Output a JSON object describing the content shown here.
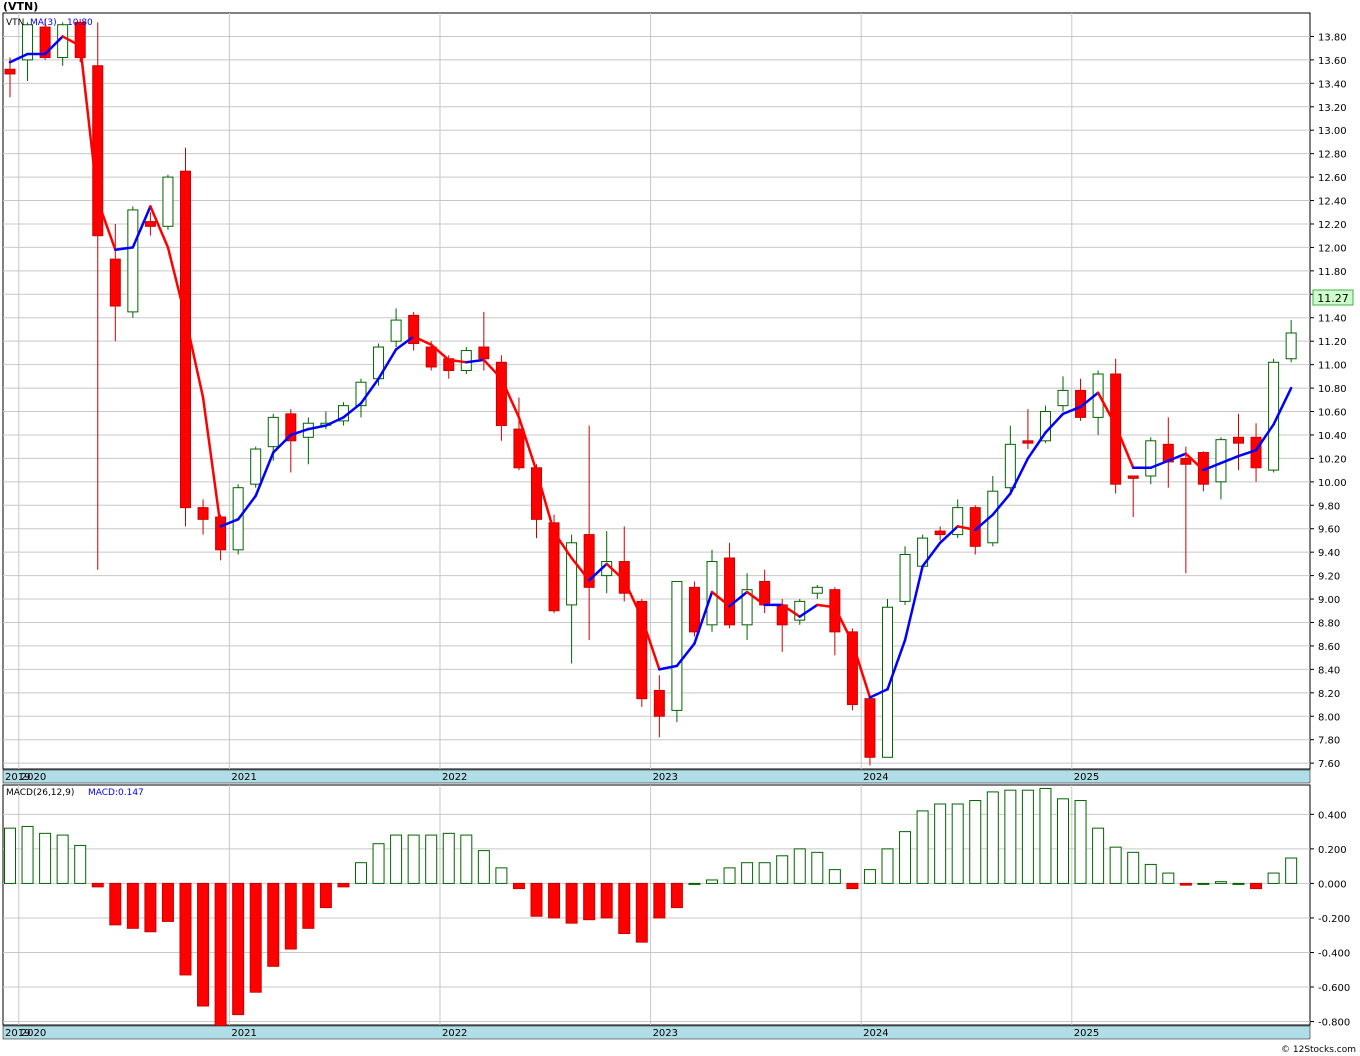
{
  "ticker": "(VTN)",
  "watermark": "© 12Stocks.com",
  "colors": {
    "up": "#006400",
    "down": "#ff0000",
    "ma": "#0000ff",
    "band": "#b0dde6",
    "grid": "#c8c8c8",
    "last_price_box": "#ccffcc"
  },
  "chart_data": [
    {
      "type": "candlestick",
      "period": "monthly",
      "legend": [
        "VTN",
        "MA(3)",
        "10.80"
      ],
      "last_price": "11.27",
      "ylim": [
        7.55,
        14.0
      ],
      "y_ticks": [
        "7.60",
        "7.80",
        "8.00",
        "8.20",
        "8.40",
        "8.60",
        "8.80",
        "9.00",
        "9.20",
        "9.40",
        "9.60",
        "9.80",
        "10.00",
        "10.20",
        "10.40",
        "10.60",
        "10.80",
        "11.00",
        "11.20",
        "11.40",
        "11.60",
        "11.80",
        "12.00",
        "12.20",
        "12.40",
        "12.60",
        "12.80",
        "13.00",
        "13.20",
        "13.40",
        "13.60",
        "13.80"
      ],
      "x_labels": [
        {
          "label": "2019",
          "month": "2019-12"
        },
        {
          "label": "2020",
          "month": "2020-01"
        },
        {
          "label": "2021",
          "month": "2021-01"
        },
        {
          "label": "2022",
          "month": "2022-01"
        },
        {
          "label": "2023",
          "month": "2023-01"
        },
        {
          "label": "2024",
          "month": "2024-01"
        },
        {
          "label": "2025",
          "month": "2025-01"
        }
      ],
      "candles": [
        {
          "d": "2019-12",
          "o": 13.52,
          "h": 13.62,
          "l": 13.28,
          "c": 13.48
        },
        {
          "d": "2020-01",
          "o": 13.6,
          "h": 13.92,
          "l": 13.42,
          "c": 13.9
        },
        {
          "d": "2020-02",
          "o": 13.88,
          "h": 13.95,
          "l": 13.6,
          "c": 13.62
        },
        {
          "d": "2020-03",
          "o": 13.62,
          "h": 13.92,
          "l": 13.55,
          "c": 13.9
        },
        {
          "d": "2020-04",
          "o": 13.92,
          "h": 13.95,
          "l": 13.58,
          "c": 13.62
        },
        {
          "d": "2020-05",
          "o": 13.55,
          "h": 13.92,
          "l": 9.25,
          "c": 12.1
        },
        {
          "d": "2020-06",
          "o": 11.9,
          "h": 12.2,
          "l": 11.2,
          "c": 11.5
        },
        {
          "d": "2020-07",
          "o": 11.45,
          "h": 12.35,
          "l": 11.4,
          "c": 12.32
        },
        {
          "d": "2020-08",
          "o": 12.22,
          "h": 12.3,
          "l": 12.1,
          "c": 12.18
        },
        {
          "d": "2020-09",
          "o": 12.18,
          "h": 12.62,
          "l": 12.15,
          "c": 12.6
        },
        {
          "d": "2020-10",
          "o": 12.65,
          "h": 12.85,
          "l": 9.62,
          "c": 9.78
        },
        {
          "d": "2020-11",
          "o": 9.78,
          "h": 9.85,
          "l": 9.55,
          "c": 9.68
        },
        {
          "d": "2020-12",
          "o": 9.7,
          "h": 9.72,
          "l": 9.33,
          "c": 9.42
        },
        {
          "d": "2021-01",
          "o": 9.42,
          "h": 9.98,
          "l": 9.38,
          "c": 9.95
        },
        {
          "d": "2021-02",
          "o": 9.98,
          "h": 10.3,
          "l": 9.95,
          "c": 10.28
        },
        {
          "d": "2021-03",
          "o": 10.3,
          "h": 10.58,
          "l": 10.18,
          "c": 10.55
        },
        {
          "d": "2021-04",
          "o": 10.58,
          "h": 10.62,
          "l": 10.08,
          "c": 10.35
        },
        {
          "d": "2021-05",
          "o": 10.38,
          "h": 10.55,
          "l": 10.15,
          "c": 10.5
        },
        {
          "d": "2021-06",
          "o": 10.5,
          "h": 10.6,
          "l": 10.45,
          "c": 10.5
        },
        {
          "d": "2021-07",
          "o": 10.52,
          "h": 10.68,
          "l": 10.48,
          "c": 10.65
        },
        {
          "d": "2021-08",
          "o": 10.65,
          "h": 10.88,
          "l": 10.55,
          "c": 10.85
        },
        {
          "d": "2021-09",
          "o": 10.88,
          "h": 11.18,
          "l": 10.82,
          "c": 11.15
        },
        {
          "d": "2021-10",
          "o": 11.2,
          "h": 11.48,
          "l": 11.15,
          "c": 11.38
        },
        {
          "d": "2021-11",
          "o": 11.42,
          "h": 11.45,
          "l": 11.12,
          "c": 11.18
        },
        {
          "d": "2021-12",
          "o": 11.15,
          "h": 11.2,
          "l": 10.95,
          "c": 10.98
        },
        {
          "d": "2022-01",
          "o": 11.05,
          "h": 11.08,
          "l": 10.88,
          "c": 10.95
        },
        {
          "d": "2022-02",
          "o": 10.95,
          "h": 11.15,
          "l": 10.92,
          "c": 11.12
        },
        {
          "d": "2022-03",
          "o": 11.15,
          "h": 11.45,
          "l": 10.95,
          "c": 11.05
        },
        {
          "d": "2022-04",
          "o": 11.02,
          "h": 11.08,
          "l": 10.35,
          "c": 10.48
        },
        {
          "d": "2022-05",
          "o": 10.45,
          "h": 10.72,
          "l": 10.1,
          "c": 10.12
        },
        {
          "d": "2022-06",
          "o": 10.12,
          "h": 10.15,
          "l": 9.52,
          "c": 9.68
        },
        {
          "d": "2022-07",
          "o": 9.65,
          "h": 9.72,
          "l": 8.88,
          "c": 8.9
        },
        {
          "d": "2022-08",
          "o": 8.95,
          "h": 9.55,
          "l": 8.45,
          "c": 9.48
        },
        {
          "d": "2022-09",
          "o": 9.55,
          "h": 10.48,
          "l": 8.65,
          "c": 9.1
        },
        {
          "d": "2022-10",
          "o": 9.2,
          "h": 9.58,
          "l": 9.05,
          "c": 9.32
        },
        {
          "d": "2022-11",
          "o": 9.32,
          "h": 9.62,
          "l": 8.98,
          "c": 9.05
        },
        {
          "d": "2022-12",
          "o": 8.98,
          "h": 9.0,
          "l": 8.08,
          "c": 8.15
        },
        {
          "d": "2023-01",
          "o": 8.22,
          "h": 8.35,
          "l": 7.82,
          "c": 8.0
        },
        {
          "d": "2023-02",
          "o": 8.05,
          "h": 9.15,
          "l": 7.95,
          "c": 9.15
        },
        {
          "d": "2023-03",
          "o": 9.1,
          "h": 9.15,
          "l": 8.68,
          "c": 8.72
        },
        {
          "d": "2023-04",
          "o": 8.78,
          "h": 9.42,
          "l": 8.72,
          "c": 9.32
        },
        {
          "d": "2023-05",
          "o": 9.35,
          "h": 9.48,
          "l": 8.75,
          "c": 8.78
        },
        {
          "d": "2023-06",
          "o": 8.78,
          "h": 9.22,
          "l": 8.65,
          "c": 9.08
        },
        {
          "d": "2023-07",
          "o": 9.15,
          "h": 9.25,
          "l": 8.88,
          "c": 8.95
        },
        {
          "d": "2023-08",
          "o": 8.95,
          "h": 9.0,
          "l": 8.55,
          "c": 8.78
        },
        {
          "d": "2023-09",
          "o": 8.82,
          "h": 9.0,
          "l": 8.78,
          "c": 8.98
        },
        {
          "d": "2023-10",
          "o": 9.05,
          "h": 9.12,
          "l": 9.0,
          "c": 9.1
        },
        {
          "d": "2023-11",
          "o": 9.08,
          "h": 9.1,
          "l": 8.52,
          "c": 8.72
        },
        {
          "d": "2023-12",
          "o": 8.72,
          "h": 8.75,
          "l": 8.05,
          "c": 8.1
        },
        {
          "d": "2024-01",
          "o": 8.15,
          "h": 8.18,
          "l": 7.58,
          "c": 7.65
        },
        {
          "d": "2024-02",
          "o": 7.65,
          "h": 9.0,
          "l": 7.65,
          "c": 8.93
        },
        {
          "d": "2024-03",
          "o": 8.98,
          "h": 9.45,
          "l": 8.95,
          "c": 9.38
        },
        {
          "d": "2024-04",
          "o": 9.28,
          "h": 9.55,
          "l": 9.25,
          "c": 9.52
        },
        {
          "d": "2024-05",
          "o": 9.58,
          "h": 9.62,
          "l": 9.5,
          "c": 9.55
        },
        {
          "d": "2024-06",
          "o": 9.55,
          "h": 9.85,
          "l": 9.52,
          "c": 9.78
        },
        {
          "d": "2024-07",
          "o": 9.78,
          "h": 9.8,
          "l": 9.38,
          "c": 9.45
        },
        {
          "d": "2024-08",
          "o": 9.48,
          "h": 10.05,
          "l": 9.45,
          "c": 9.92
        },
        {
          "d": "2024-09",
          "o": 9.95,
          "h": 10.48,
          "l": 9.9,
          "c": 10.32
        },
        {
          "d": "2024-10",
          "o": 10.35,
          "h": 10.62,
          "l": 10.28,
          "c": 10.33
        },
        {
          "d": "2024-11",
          "o": 10.35,
          "h": 10.65,
          "l": 10.33,
          "c": 10.6
        },
        {
          "d": "2024-12",
          "o": 10.65,
          "h": 10.9,
          "l": 10.6,
          "c": 10.78
        },
        {
          "d": "2025-01",
          "o": 10.78,
          "h": 10.88,
          "l": 10.52,
          "c": 10.55
        },
        {
          "d": "2025-02",
          "o": 10.55,
          "h": 10.95,
          "l": 10.4,
          "c": 10.92
        },
        {
          "d": "2025-03",
          "o": 10.92,
          "h": 11.05,
          "l": 9.9,
          "c": 9.98
        },
        {
          "d": "2025-04",
          "o": 10.05,
          "h": 10.05,
          "l": 9.7,
          "c": 10.03
        },
        {
          "d": "2025-05",
          "o": 10.05,
          "h": 10.38,
          "l": 9.98,
          "c": 10.35
        },
        {
          "d": "2025-06",
          "o": 10.32,
          "h": 10.55,
          "l": 9.95,
          "c": 10.17
        },
        {
          "d": "2025-07",
          "o": 10.2,
          "h": 10.3,
          "l": 9.22,
          "c": 10.15
        },
        {
          "d": "2025-08",
          "o": 10.25,
          "h": 10.26,
          "l": 9.92,
          "c": 9.98
        },
        {
          "d": "2025-09",
          "o": 10.0,
          "h": 10.38,
          "l": 9.85,
          "c": 10.36
        },
        {
          "d": "2025-10",
          "o": 10.38,
          "h": 10.58,
          "l": 10.1,
          "c": 10.33
        },
        {
          "d": "2025-11",
          "o": 10.38,
          "h": 10.5,
          "l": 10.0,
          "c": 10.12
        },
        {
          "d": "2025-12",
          "o": 10.1,
          "h": 11.05,
          "l": 10.08,
          "c": 11.02
        },
        {
          "d": "2026-01",
          "o": 11.05,
          "h": 11.38,
          "l": 11.02,
          "c": 11.27
        }
      ],
      "ma3": [
        13.58,
        13.65,
        13.65,
        13.8,
        13.72,
        12.4,
        11.98,
        12.0,
        12.35,
        12.0,
        11.4,
        10.72,
        9.62,
        9.68,
        9.88,
        10.25,
        10.4,
        10.45,
        10.48,
        10.55,
        10.67,
        10.88,
        11.13,
        11.24,
        11.17,
        11.04,
        11.02,
        11.04,
        10.88,
        10.55,
        10.09,
        9.57,
        9.35,
        9.16,
        9.3,
        9.16,
        8.84,
        8.4,
        8.43,
        8.62,
        9.06,
        8.94,
        9.06,
        8.95,
        8.95,
        8.85,
        8.95,
        8.93,
        8.63,
        8.16,
        8.23,
        8.65,
        9.28,
        9.48,
        9.62,
        9.59,
        9.72,
        9.9,
        10.2,
        10.42,
        10.58,
        10.64,
        10.76,
        10.48,
        10.12,
        10.12,
        10.18,
        10.24,
        10.1,
        10.16,
        10.22,
        10.27,
        10.49,
        10.8
      ],
      "macd_panel": {
        "legend": [
          "MACD(26,12,9)",
          "MACD:0.147"
        ],
        "ylim": [
          -0.82,
          0.57
        ],
        "y_ticks": [
          "-0.800",
          "-0.600",
          "-0.400",
          "-0.200",
          "0.000",
          "0.200",
          "0.400"
        ],
        "values": [
          0.32,
          0.33,
          0.29,
          0.28,
          0.22,
          -0.02,
          -0.24,
          -0.26,
          -0.28,
          -0.22,
          -0.53,
          -0.71,
          -0.86,
          -0.76,
          -0.63,
          -0.48,
          -0.38,
          -0.26,
          -0.14,
          -0.02,
          0.12,
          0.23,
          0.28,
          0.28,
          0.28,
          0.29,
          0.28,
          0.19,
          0.09,
          -0.03,
          -0.19,
          -0.2,
          -0.23,
          -0.21,
          -0.2,
          -0.29,
          -0.34,
          -0.2,
          -0.14,
          0.0,
          0.02,
          0.09,
          0.12,
          0.12,
          0.16,
          0.2,
          0.18,
          0.08,
          -0.03,
          0.08,
          0.2,
          0.3,
          0.42,
          0.46,
          0.46,
          0.48,
          0.53,
          0.54,
          0.54,
          0.55,
          0.49,
          0.48,
          0.32,
          0.21,
          0.18,
          0.11,
          0.06,
          -0.01,
          0.0,
          0.01,
          0.0,
          -0.03,
          0.06,
          0.147
        ]
      }
    }
  ]
}
